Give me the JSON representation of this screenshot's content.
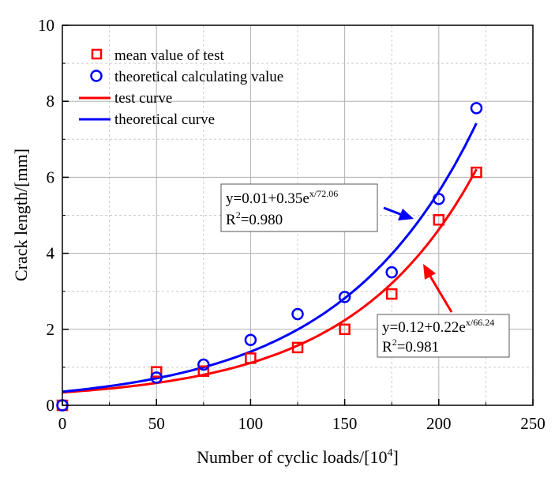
{
  "chart_data": {
    "type": "scatter",
    "title": "",
    "xlabel": "Number of cyclic loads/[10",
    "xlabel_sup": "4",
    "xlabel_end": "]",
    "ylabel": "Crack length/[mm]",
    "xlim": [
      0,
      250
    ],
    "ylim": [
      0,
      10
    ],
    "xticks": [
      "0",
      "50",
      "100",
      "150",
      "200",
      "250"
    ],
    "xtick_values": [
      0,
      50,
      100,
      150,
      200,
      250
    ],
    "yticks": [
      "0",
      "2",
      "4",
      "6",
      "8",
      "10"
    ],
    "ytick_values": [
      0,
      2,
      4,
      6,
      8,
      10
    ],
    "grid": true,
    "legend_position": "top-left",
    "series": [
      {
        "name": "mean value of test",
        "kind": "scatter",
        "marker": "square",
        "color": "#ff0000",
        "x": [
          0,
          50,
          75,
          100,
          125,
          150,
          175,
          200,
          220
        ],
        "y": [
          0,
          0.88,
          0.9,
          1.24,
          1.52,
          2.0,
          2.93,
          4.88,
          6.13
        ]
      },
      {
        "name": "theoretical calculating value",
        "kind": "scatter",
        "marker": "circle",
        "color": "#0000ff",
        "x": [
          0,
          50,
          75,
          100,
          125,
          150,
          175,
          200,
          220
        ],
        "y": [
          0,
          0.73,
          1.07,
          1.72,
          2.4,
          2.85,
          3.5,
          5.43,
          7.82
        ]
      },
      {
        "name": "test curve",
        "kind": "line",
        "color": "#ff0000",
        "fit": {
          "a": 0.12,
          "b": 0.22,
          "t": 66.24
        },
        "x_range": [
          0,
          220
        ]
      },
      {
        "name": "theoretical curve",
        "kind": "line",
        "color": "#0000ff",
        "fit": {
          "a": 0.01,
          "b": 0.35,
          "t": 72.06
        },
        "x_range": [
          0,
          220
        ]
      }
    ],
    "annotations": [
      {
        "id": "theory",
        "eq": "y=0.01+0.35e",
        "exp": "x/72.06",
        "r2_label": "R",
        "r2_sup": "2",
        "r2_val": "=0.980",
        "color": "#0000ff"
      },
      {
        "id": "test",
        "eq": "y=0.12+0.22e",
        "exp": "x/66.24",
        "r2_label": "R",
        "r2_sup": "2",
        "r2_val": "=0.981",
        "color": "#ff0000"
      }
    ]
  }
}
